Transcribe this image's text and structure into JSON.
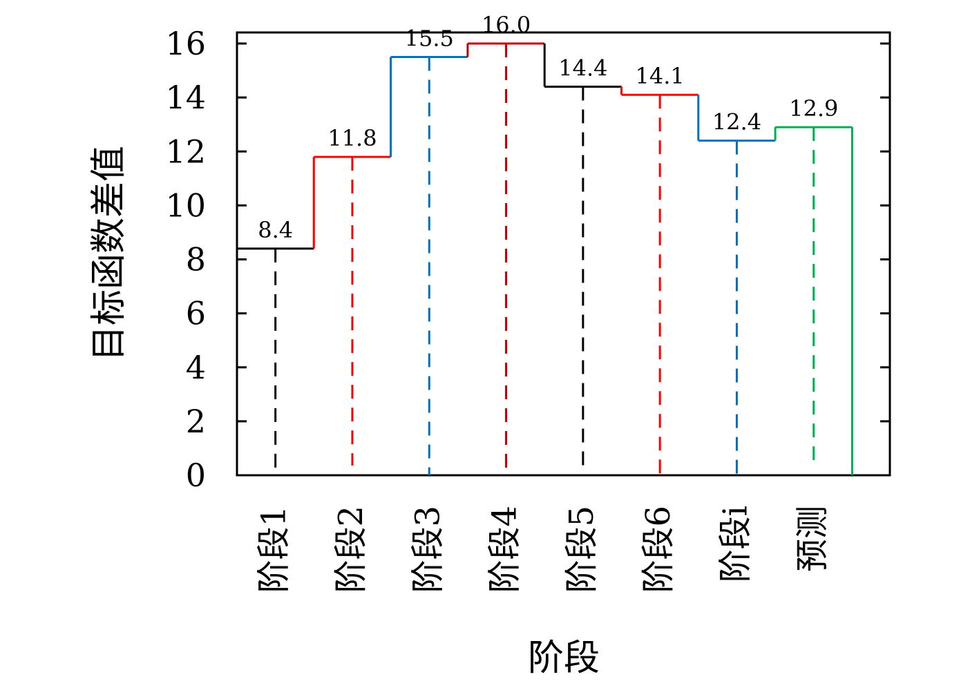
{
  "chart_data": {
    "type": "line",
    "step": true,
    "title": "",
    "xlabel": "阶段",
    "ylabel": "目标函数差值",
    "categories": [
      "阶段1",
      "阶段2",
      "阶段3",
      "阶段4",
      "阶段5",
      "阶段6",
      "阶段i",
      "预测"
    ],
    "values": [
      8.4,
      11.8,
      15.5,
      16.0,
      14.4,
      14.1,
      12.4,
      12.9
    ],
    "value_labels": [
      "8.4",
      "11.8",
      "15.5",
      "16.0",
      "14.4",
      "14.1",
      "12.4",
      "12.9"
    ],
    "colors": [
      "#000000",
      "#ff0000",
      "#0070c0",
      "#c00000",
      "#000000",
      "#ff0000",
      "#0070c0",
      "#00b050"
    ],
    "ylim": [
      0,
      16
    ],
    "yticks": [
      0,
      2,
      4,
      6,
      8,
      10,
      12,
      14,
      16
    ],
    "grid": false,
    "legend": "none"
  }
}
